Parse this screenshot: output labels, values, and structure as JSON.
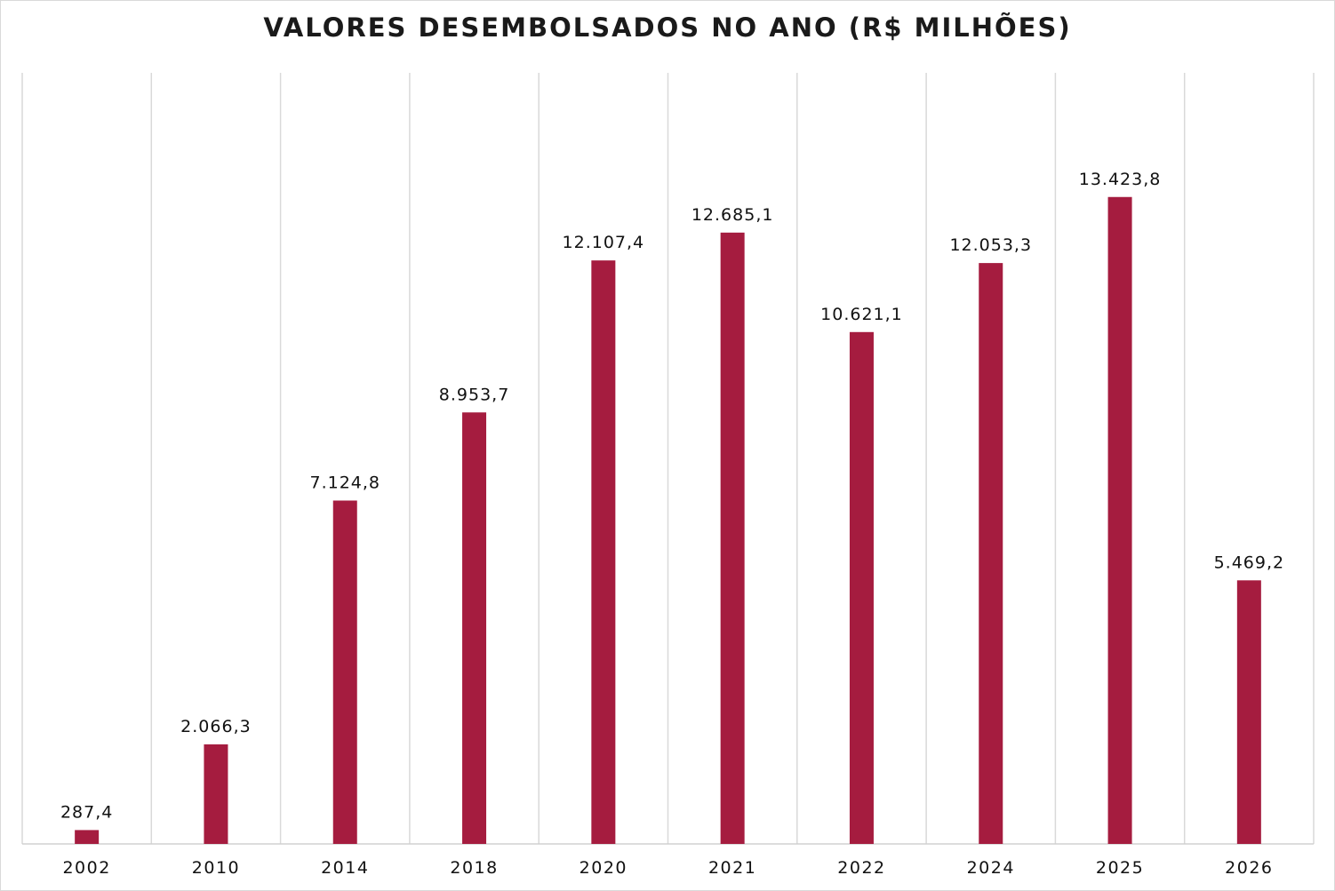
{
  "chart_data": {
    "type": "bar",
    "title": "VALORES DESEMBOLSADOS NO ANO (R$ MILHÕES)",
    "categories": [
      "2002",
      "2010",
      "2014",
      "2018",
      "2020",
      "2021",
      "2022",
      "2024",
      "2025",
      "2026"
    ],
    "values": [
      287.4,
      2066.3,
      7124.8,
      8953.7,
      12107.4,
      12685.1,
      10621.1,
      12053.3,
      13423.8,
      5469.2
    ],
    "value_labels": [
      "287,4",
      "2.066,3",
      "7.124,8",
      "8.953,7",
      "12.107,4",
      "12.685,1",
      "10.621,1",
      "12.053,3",
      "13.423,8",
      "5.469,2"
    ],
    "xlabel": "",
    "ylabel": "",
    "ylim": [
      0,
      16000
    ],
    "bar_color": "#a51c3f",
    "grid": "vertical category separators",
    "legend": "none"
  }
}
